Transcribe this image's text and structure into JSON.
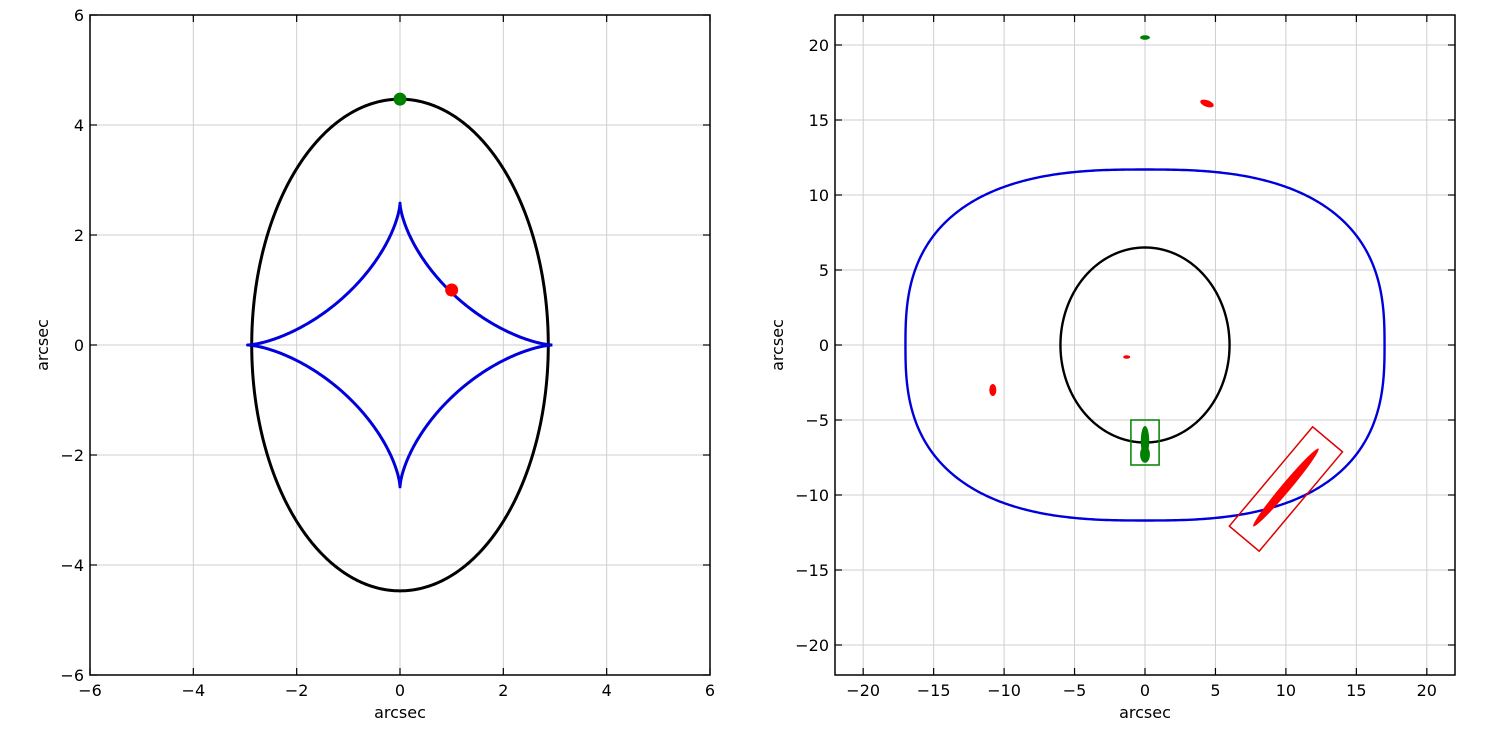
{
  "chart_data": [
    {
      "type": "line",
      "title": "",
      "xlabel": "arcsec",
      "ylabel": "arcsec",
      "xlim": [
        -6,
        6
      ],
      "ylim": [
        -6,
        6
      ],
      "xticks": [
        -6,
        -4,
        -2,
        0,
        2,
        4,
        6
      ],
      "yticks": [
        -6,
        -4,
        -2,
        0,
        2,
        4,
        6
      ],
      "xtick_labels": [
        "−6",
        "−4",
        "−2",
        "0",
        "2",
        "4",
        "6"
      ],
      "ytick_labels": [
        "−6",
        "−4",
        "−2",
        "0",
        "2",
        "4",
        "6"
      ],
      "grid": true,
      "legend": "none",
      "curves": [
        {
          "kind": "ellipse",
          "color": "#000000",
          "cx": 0,
          "cy": 0,
          "rx": 2.87,
          "ry": 4.47
        },
        {
          "kind": "astroid",
          "color": "#0000dd",
          "cx": 0,
          "cy": 0,
          "ax": 2.95,
          "ay": 2.58
        }
      ],
      "points": [
        {
          "x": 0.0,
          "y": 4.47,
          "color": "#008000"
        },
        {
          "x": 1.0,
          "y": 1.0,
          "color": "#ff0000"
        }
      ]
    },
    {
      "type": "line",
      "title": "",
      "xlabel": "arcsec",
      "ylabel": "arcsec",
      "xlim": [
        -22,
        22
      ],
      "ylim": [
        -22,
        22
      ],
      "xticks": [
        -20,
        -15,
        -10,
        -5,
        0,
        5,
        10,
        15,
        20
      ],
      "yticks": [
        -20,
        -15,
        -10,
        -5,
        0,
        5,
        10,
        15,
        20
      ],
      "xtick_labels": [
        "−20",
        "−15",
        "−10",
        "−5",
        "0",
        "5",
        "10",
        "15",
        "20"
      ],
      "ytick_labels": [
        "−20",
        "−15",
        "−10",
        "−5",
        "0",
        "5",
        "10",
        "15",
        "20"
      ],
      "grid": true,
      "legend": "none",
      "curves": [
        {
          "kind": "ellipse",
          "color": "#000000",
          "cx": 0,
          "cy": 0,
          "rx": 6.0,
          "ry": 6.5
        },
        {
          "kind": "superellipse",
          "color": "#0000dd",
          "cx": 0,
          "cy": 0,
          "rx": 17.0,
          "ry": 11.7
        }
      ],
      "images": [
        {
          "x": 0.0,
          "y": 20.5,
          "rx": 0.35,
          "ry": 0.15,
          "angle": 0,
          "color": "#008000"
        },
        {
          "x": 4.4,
          "y": 16.1,
          "rx": 0.5,
          "ry": 0.22,
          "angle": -20,
          "color": "#ff0000"
        },
        {
          "x": -1.3,
          "y": -0.8,
          "rx": 0.25,
          "ry": 0.12,
          "angle": 0,
          "color": "#ff0000"
        },
        {
          "x": -10.8,
          "y": -3.0,
          "rx": 0.25,
          "ry": 0.4,
          "angle": 0,
          "color": "#ff0000"
        },
        {
          "x": 0.0,
          "y": -6.4,
          "rx": 0.3,
          "ry": 1.0,
          "angle": 0,
          "color": "#008000"
        },
        {
          "x": 0.0,
          "y": -7.3,
          "rx": 0.35,
          "ry": 0.55,
          "angle": 0,
          "color": "#008000"
        },
        {
          "x": 10.0,
          "y": -9.5,
          "rx": 3.6,
          "ry": 0.3,
          "angle": 50,
          "color": "#ff0000"
        }
      ],
      "boxes": [
        {
          "x0": -1.0,
          "y0": -8.0,
          "x1": 1.0,
          "y1": -5.0,
          "angle": 0,
          "color": "#008000"
        },
        {
          "cx": 10.0,
          "cy": -9.6,
          "w": 9.2,
          "h": 2.6,
          "angle": 50,
          "color": "#dd0000"
        }
      ]
    }
  ]
}
